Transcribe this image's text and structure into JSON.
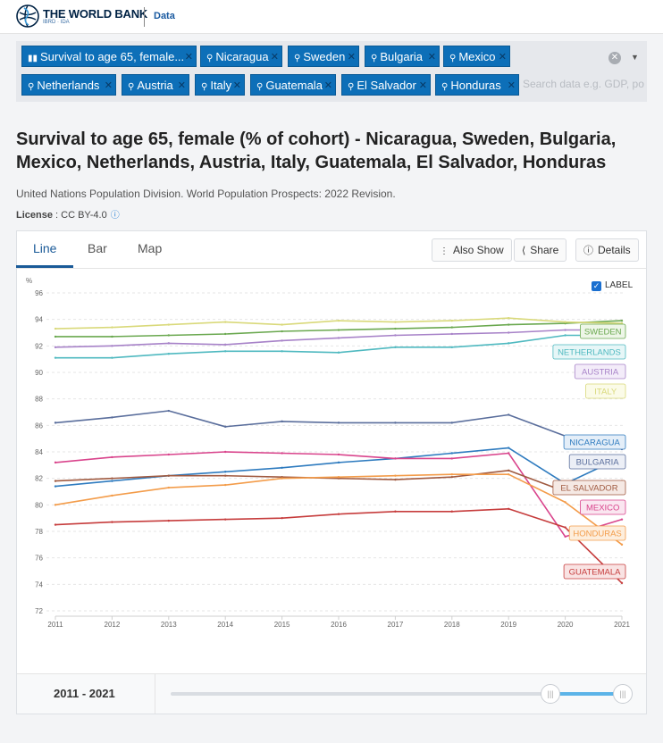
{
  "header": {
    "brand": "THE WORLD BANK",
    "brand_sub": "IBRD · IDA",
    "data_link": "Data"
  },
  "filters": {
    "chips": [
      {
        "label": "Survival to age 65, female...",
        "icon": "bar-chart-icon"
      },
      {
        "label": "Nicaragua",
        "icon": "pin-icon"
      },
      {
        "label": "Sweden",
        "icon": "pin-icon"
      },
      {
        "label": "Bulgaria",
        "icon": "pin-icon"
      },
      {
        "label": "Mexico",
        "icon": "pin-icon"
      },
      {
        "label": "Netherlands",
        "icon": "pin-icon"
      },
      {
        "label": "Austria",
        "icon": "pin-icon"
      },
      {
        "label": "Italy",
        "icon": "pin-icon"
      },
      {
        "label": "Guatemala",
        "icon": "pin-icon"
      },
      {
        "label": "El Salvador",
        "icon": "pin-icon"
      },
      {
        "label": "Honduras",
        "icon": "pin-icon"
      }
    ],
    "search_placeholder": "Search data e.g. GDP, po"
  },
  "page": {
    "title": "Survival to age 65, female (% of cohort) - Nicaragua, Sweden, Bulgaria, Mexico, Netherlands, Austria, Italy, Guatemala, El Salvador, Honduras",
    "source": "United Nations Population Division. World Population Prospects: 2022 Revision.",
    "license_label": "License",
    "license_value": " : CC BY-4.0"
  },
  "tabs": [
    "Line",
    "Bar",
    "Map"
  ],
  "toolbar": {
    "also_show": "Also Show",
    "share": "Share",
    "details": "Details"
  },
  "legend_toggle": "LABEL",
  "range": {
    "label": "2011 - 2021"
  },
  "chart_data": {
    "type": "line",
    "title": "Survival to age 65, female (% of cohort)",
    "ylabel": "%",
    "xlabel": "",
    "ylim": [
      72,
      96
    ],
    "yticks": [
      72,
      74,
      76,
      78,
      80,
      82,
      84,
      86,
      88,
      90,
      92,
      94,
      96
    ],
    "x": [
      2011,
      2012,
      2013,
      2014,
      2015,
      2016,
      2017,
      2018,
      2019,
      2020,
      2021
    ],
    "series": [
      {
        "name": "SWEDEN",
        "color": "#6aa84f",
        "label_bg": "#eef6e8",
        "values": [
          92.7,
          92.7,
          92.8,
          92.9,
          93.1,
          93.2,
          93.3,
          93.4,
          93.6,
          93.7,
          93.9
        ]
      },
      {
        "name": "ITALY",
        "color": "#d9d97a",
        "label_bg": "#fbfbe8",
        "values": [
          93.3,
          93.4,
          93.6,
          93.8,
          93.6,
          93.9,
          93.8,
          93.9,
          94.1,
          93.8,
          93.7
        ]
      },
      {
        "name": "AUSTRIA",
        "color": "#a782c8",
        "label_bg": "#f3ecf9",
        "values": [
          91.9,
          92.0,
          92.2,
          92.1,
          92.4,
          92.6,
          92.8,
          92.9,
          93.0,
          93.2,
          93.2
        ]
      },
      {
        "name": "NETHERLANDS",
        "color": "#4fb9c0",
        "label_bg": "#e6f6f7",
        "values": [
          91.1,
          91.1,
          91.4,
          91.6,
          91.6,
          91.5,
          91.9,
          91.9,
          92.2,
          92.8,
          92.8
        ]
      },
      {
        "name": "BULGARIA",
        "color": "#5a6e9c",
        "label_bg": "#eceff6",
        "values": [
          86.2,
          86.6,
          87.1,
          85.9,
          86.3,
          86.2,
          86.2,
          86.2,
          86.8,
          85.2,
          84.2
        ]
      },
      {
        "name": "NICARAGUA",
        "color": "#2e7bbf",
        "label_bg": "#e4eef8",
        "values": [
          81.4,
          81.8,
          82.2,
          82.5,
          82.8,
          83.2,
          83.5,
          83.9,
          84.3,
          81.6,
          83.6
        ]
      },
      {
        "name": "MEXICO",
        "color": "#d9448c",
        "label_bg": "#fae6f0",
        "values": [
          83.2,
          83.6,
          83.8,
          84.0,
          83.9,
          83.8,
          83.5,
          83.5,
          83.9,
          77.6,
          78.9
        ]
      },
      {
        "name": "EL SALVADOR",
        "color": "#a05a40",
        "label_bg": "#f5e9e4",
        "values": [
          81.8,
          82.0,
          82.2,
          82.2,
          82.1,
          82.0,
          81.9,
          82.1,
          82.6,
          81.0,
          81.8
        ]
      },
      {
        "name": "HONDURAS",
        "color": "#f39c4a",
        "label_bg": "#fdeedd",
        "values": [
          80.0,
          80.7,
          81.3,
          81.5,
          82.0,
          82.1,
          82.2,
          82.3,
          82.3,
          80.2,
          77.0
        ]
      },
      {
        "name": "GUATEMALA",
        "color": "#c63c3c",
        "label_bg": "#f9e3e3",
        "values": [
          78.5,
          78.7,
          78.8,
          78.9,
          79.0,
          79.3,
          79.5,
          79.5,
          79.7,
          78.3,
          74.1
        ]
      }
    ],
    "labels_order": [
      "SWEDEN",
      "NETHERLANDS",
      "AUSTRIA",
      "ITALY",
      "NICARAGUA",
      "BULGARIA",
      "EL SALVADOR",
      "MEXICO",
      "HONDURAS",
      "GUATEMALA"
    ]
  }
}
